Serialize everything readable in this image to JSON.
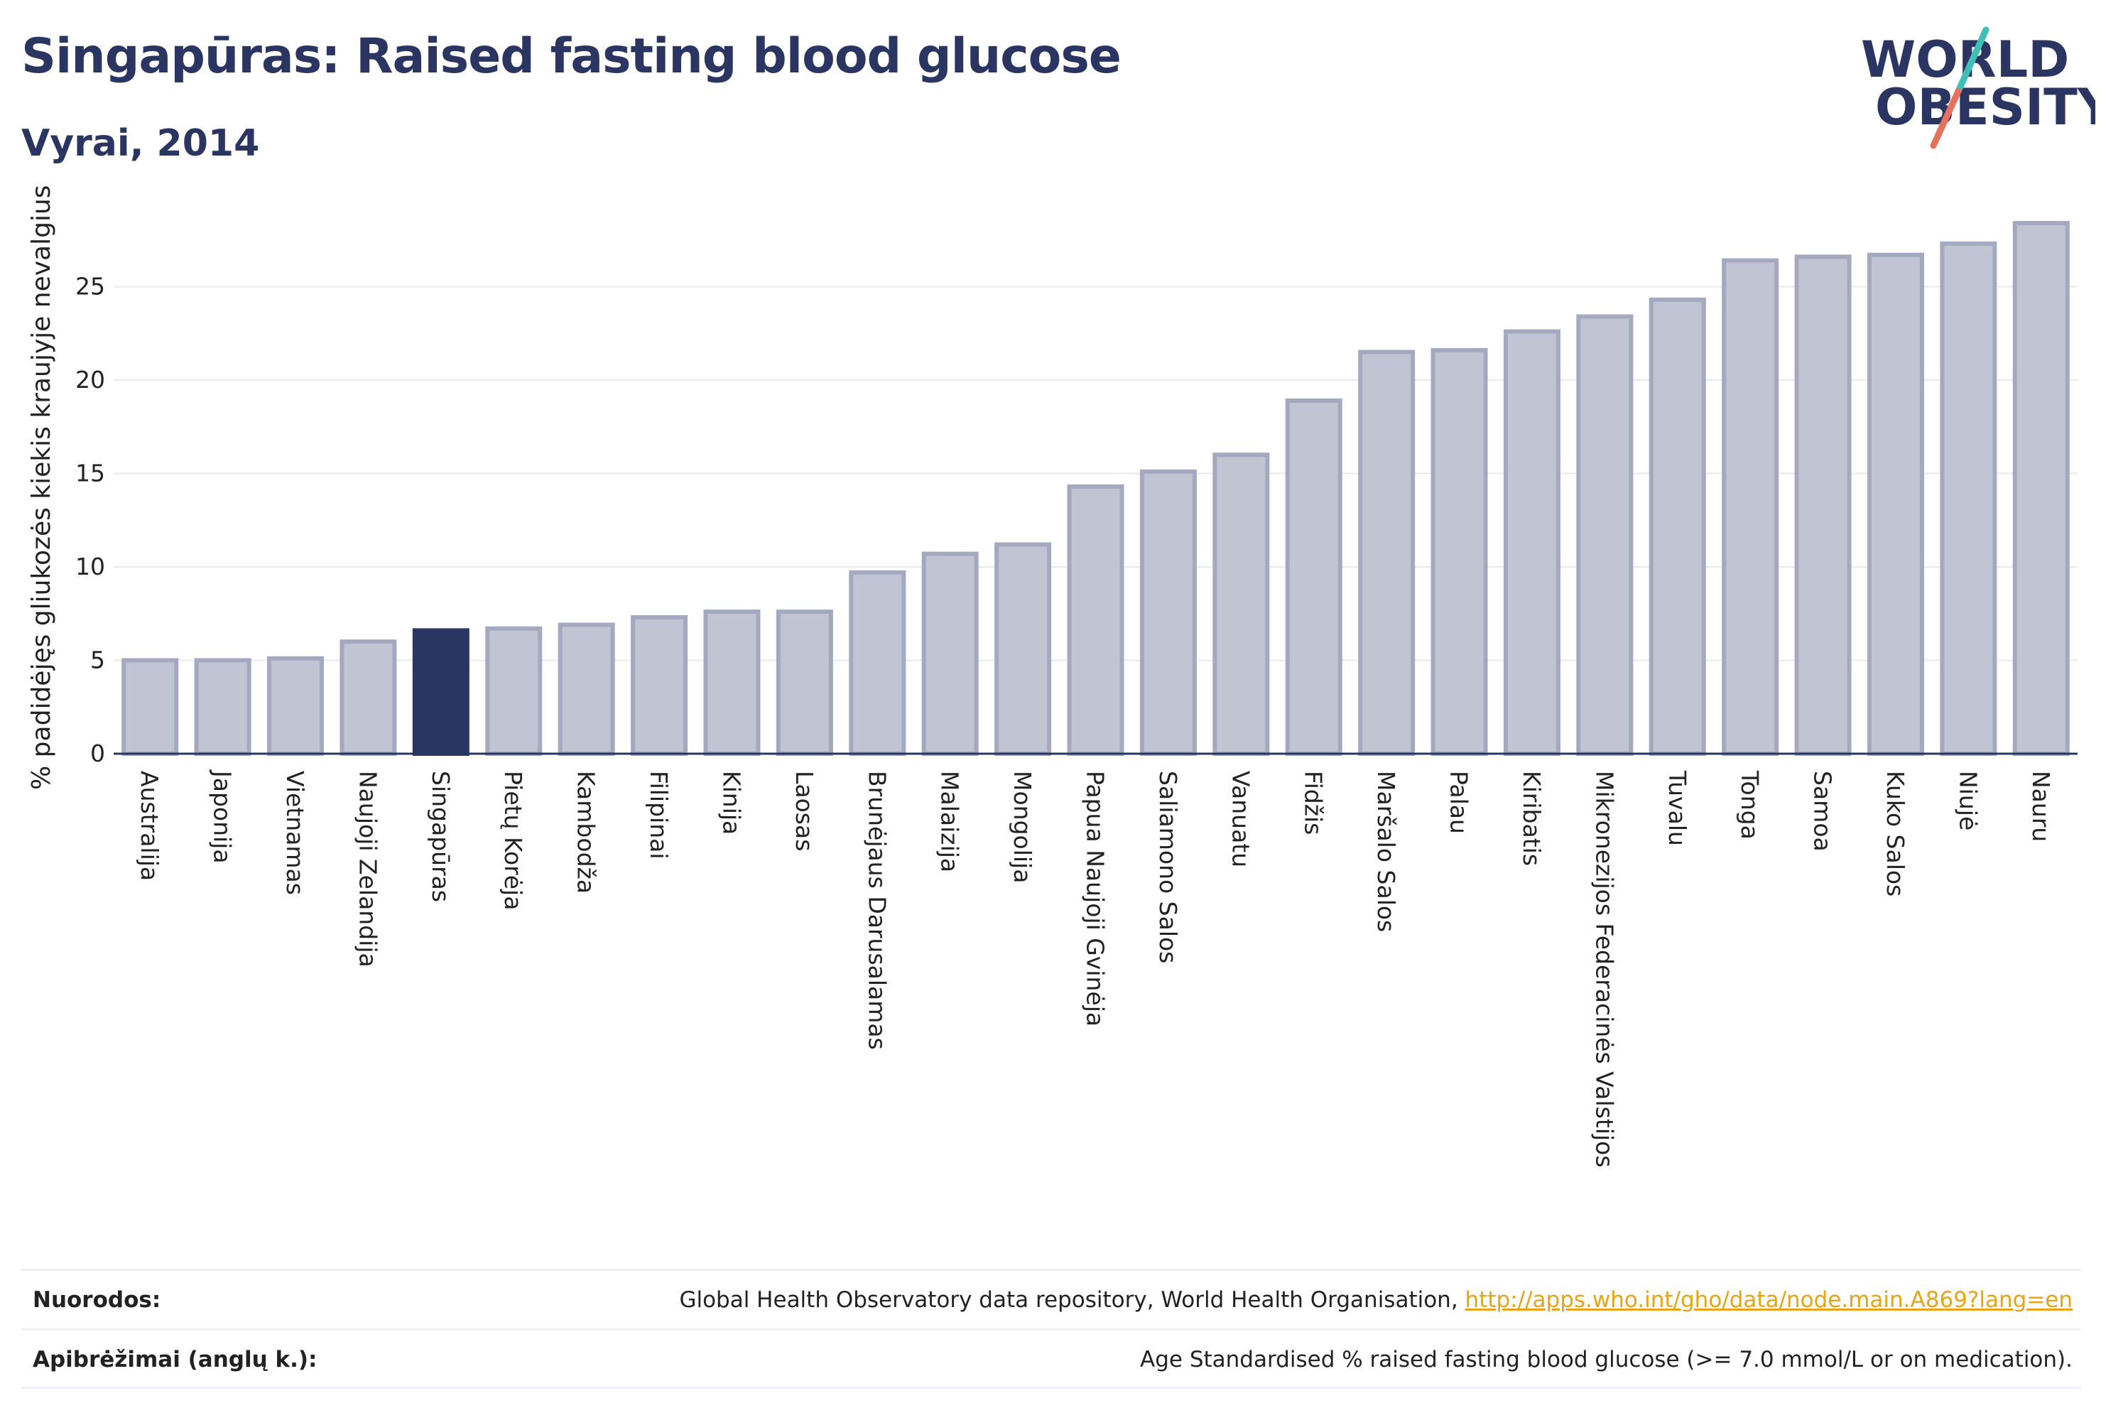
{
  "header": {
    "title": "Singapūras: Raised fasting blood glucose",
    "subtitle": "Vyrai, 2014"
  },
  "logo": {
    "line1": "WORLD",
    "line2": "OBESITY"
  },
  "colors": {
    "highlight_bar": "#2b3561",
    "bar_fill": "#c1c4d2",
    "bar_stroke": "#a4a9c0",
    "text_dark": "#2b3561",
    "link": "#e6a514",
    "logo_teal": "#3fbfb8",
    "logo_coral": "#e8715d"
  },
  "chart_data": {
    "type": "bar",
    "ylabel": "% padidėjęs gliukozės kiekis kraujyje nevalgius",
    "xlabel": "",
    "ylim": [
      0,
      29
    ],
    "yticks": [
      0,
      5,
      10,
      15,
      20,
      25
    ],
    "grid": true,
    "highlight": "Singapūras",
    "categories": [
      "Australija",
      "Japonija",
      "Vietnamas",
      "Naujoji Zelandija",
      "Singapūras",
      "Pietų Korėja",
      "Kambodža",
      "Filipinai",
      "Kinija",
      "Laosas",
      "Brunėjaus Darusalamas",
      "Malaizija",
      "Mongolija",
      "Papua Naujoji Gvinėja",
      "Saliamono Salos",
      "Vanuatu",
      "Fidžis",
      "Maršalo Salos",
      "Palau",
      "Kiribatis",
      "Mikronezijos Federacinės Valstijos",
      "Tuvalu",
      "Tonga",
      "Samoa",
      "Kuko Salos",
      "Niujė",
      "Nauru"
    ],
    "values": [
      5.0,
      5.0,
      5.1,
      6.0,
      6.6,
      6.7,
      6.9,
      7.3,
      7.6,
      7.6,
      9.7,
      10.7,
      11.2,
      14.3,
      15.1,
      16.0,
      18.9,
      21.5,
      21.6,
      22.6,
      23.4,
      24.3,
      26.4,
      26.6,
      26.7,
      27.3,
      28.4
    ]
  },
  "footer": {
    "sources_label": "Nuorodos:",
    "sources_text": "Global Health Observatory data repository, World Health Organisation, ",
    "sources_link": "http://apps.who.int/gho/data/node.main.A869?lang=en",
    "definitions_label": "Apibrėžimai (anglų k.):",
    "definitions_text": "Age Standardised % raised fasting blood glucose (>= 7.0 mmol/L or on medication)."
  }
}
